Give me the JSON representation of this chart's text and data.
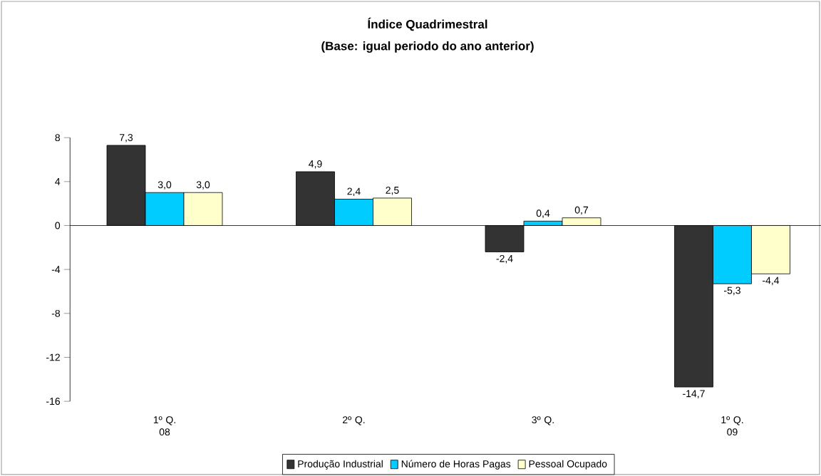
{
  "chart_data": {
    "type": "bar",
    "title": "Índice Quadrimestral",
    "subtitle": "(Base: igual periodo do ano anterior)",
    "categories": [
      "1º Q. 08",
      "2º Q.",
      "3º Q.",
      "1º Q. 09"
    ],
    "series": [
      {
        "name": "Produção Industrial",
        "color": "#333333",
        "values": [
          7.3,
          4.9,
          -2.4,
          -14.7
        ],
        "value_labels": [
          "7,3",
          "4,9",
          "-2,4",
          "-14,7"
        ]
      },
      {
        "name": "Número de Horas Pagas",
        "color": "#00ccff",
        "values": [
          3.0,
          2.4,
          0.4,
          -5.3
        ],
        "value_labels": [
          "3,0",
          "2,4",
          "0,4",
          "-5,3"
        ]
      },
      {
        "name": "Pessoal Ocupado",
        "color": "#ffffcc",
        "values": [
          3.0,
          2.5,
          0.7,
          -4.4
        ],
        "value_labels": [
          "3,0",
          "2,5",
          "0,7",
          "-4,4"
        ]
      }
    ],
    "ylim": [
      -16,
      8
    ],
    "yticks": [
      8,
      4,
      0,
      -4,
      -8,
      -12,
      -16
    ],
    "legend": "bottom"
  }
}
